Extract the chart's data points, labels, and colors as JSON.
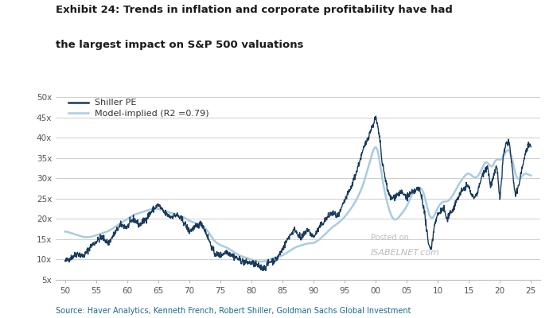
{
  "title_line1": "Exhibit 24: Trends in inflation and corporate profitability have had",
  "title_line2": "the largest impact on S&P 500 valuations",
  "source": "Source: Haver Analytics, Kenneth French, Robert Shiller, Goldman Sachs Global Investment",
  "legend_shiller": "Shiller PE",
  "legend_model": "Model-implied (R2 =0.79)",
  "color_shiller": "#1a3a5c",
  "color_model": "#a8cce0",
  "watermark_line1": "Posted on",
  "watermark_line2": "ISABELNET.com",
  "ylim": [
    5,
    52
  ],
  "yticks": [
    5,
    10,
    15,
    20,
    25,
    30,
    35,
    40,
    45,
    50
  ],
  "ytick_labels": [
    "5x",
    "10x",
    "15x",
    "20x",
    "25x",
    "30x",
    "35x",
    "40x",
    "45x",
    "50x"
  ],
  "xticks": [
    1950,
    1955,
    1960,
    1965,
    1970,
    1975,
    1980,
    1985,
    1990,
    1995,
    2000,
    2005,
    2010,
    2015,
    2020,
    2025
  ],
  "xtick_labels": [
    "50",
    "55",
    "60",
    "65",
    "70",
    "75",
    "80",
    "85",
    "90",
    "95",
    "00",
    "05",
    "10",
    "15",
    "20",
    "25"
  ],
  "background_color": "#ffffff",
  "title_color": "#1a1a1a",
  "source_color": "#1a6b8a",
  "axis_color": "#bbbbbb",
  "shiller_keypoints": [
    [
      1950,
      9.5
    ],
    [
      1951,
      10.5
    ],
    [
      1952,
      11.5
    ],
    [
      1953,
      10.8
    ],
    [
      1954,
      13.0
    ],
    [
      1955,
      14.5
    ],
    [
      1956,
      15.5
    ],
    [
      1957,
      14.0
    ],
    [
      1958,
      16.5
    ],
    [
      1959,
      18.5
    ],
    [
      1960,
      18.0
    ],
    [
      1961,
      20.0
    ],
    [
      1962,
      18.5
    ],
    [
      1963,
      20.0
    ],
    [
      1964,
      22.0
    ],
    [
      1965,
      23.5
    ],
    [
      1966,
      21.5
    ],
    [
      1967,
      20.5
    ],
    [
      1968,
      21.0
    ],
    [
      1969,
      19.5
    ],
    [
      1970,
      17.0
    ],
    [
      1971,
      18.0
    ],
    [
      1972,
      19.0
    ],
    [
      1973,
      15.5
    ],
    [
      1974,
      11.5
    ],
    [
      1975,
      11.0
    ],
    [
      1976,
      12.0
    ],
    [
      1977,
      11.0
    ],
    [
      1978,
      10.0
    ],
    [
      1979,
      9.3
    ],
    [
      1980,
      9.2
    ],
    [
      1981,
      8.5
    ],
    [
      1982,
      7.8
    ],
    [
      1983,
      9.5
    ],
    [
      1984,
      10.0
    ],
    [
      1985,
      12.5
    ],
    [
      1986,
      15.5
    ],
    [
      1987,
      17.5
    ],
    [
      1988,
      15.0
    ],
    [
      1989,
      17.5
    ],
    [
      1990,
      15.5
    ],
    [
      1991,
      18.0
    ],
    [
      1992,
      20.0
    ],
    [
      1993,
      21.5
    ],
    [
      1994,
      20.5
    ],
    [
      1995,
      24.5
    ],
    [
      1996,
      27.5
    ],
    [
      1997,
      32.0
    ],
    [
      1998,
      37.0
    ],
    [
      1999,
      41.0
    ],
    [
      2000.0,
      45.0
    ],
    [
      2000.3,
      43.0
    ],
    [
      2000.8,
      38.0
    ],
    [
      2001.0,
      34.0
    ],
    [
      2001.5,
      30.5
    ],
    [
      2002.0,
      26.5
    ],
    [
      2002.5,
      25.0
    ],
    [
      2003.0,
      25.5
    ],
    [
      2003.5,
      26.0
    ],
    [
      2004.0,
      26.5
    ],
    [
      2004.5,
      26.0
    ],
    [
      2005.0,
      25.5
    ],
    [
      2005.5,
      26.0
    ],
    [
      2006.0,
      26.5
    ],
    [
      2006.5,
      27.0
    ],
    [
      2007.0,
      27.5
    ],
    [
      2007.5,
      25.0
    ],
    [
      2008.0,
      20.0
    ],
    [
      2008.5,
      13.5
    ],
    [
      2009.0,
      13.0
    ],
    [
      2009.5,
      19.0
    ],
    [
      2010.0,
      21.0
    ],
    [
      2010.5,
      22.0
    ],
    [
      2011.0,
      22.5
    ],
    [
      2011.5,
      19.5
    ],
    [
      2012.0,
      21.5
    ],
    [
      2012.5,
      22.5
    ],
    [
      2013.0,
      24.5
    ],
    [
      2013.5,
      26.0
    ],
    [
      2014.0,
      27.0
    ],
    [
      2014.5,
      28.0
    ],
    [
      2015.0,
      28.0
    ],
    [
      2015.5,
      25.5
    ],
    [
      2016.0,
      25.5
    ],
    [
      2016.5,
      27.0
    ],
    [
      2017.0,
      30.0
    ],
    [
      2017.5,
      32.0
    ],
    [
      2018.0,
      33.0
    ],
    [
      2018.5,
      28.0
    ],
    [
      2019.0,
      30.5
    ],
    [
      2019.5,
      33.0
    ],
    [
      2020.0,
      25.0
    ],
    [
      2020.3,
      30.0
    ],
    [
      2020.5,
      35.0
    ],
    [
      2021.0,
      38.5
    ],
    [
      2021.5,
      39.0
    ],
    [
      2022.0,
      32.0
    ],
    [
      2022.5,
      25.5
    ],
    [
      2023.0,
      28.0
    ],
    [
      2023.5,
      32.0
    ],
    [
      2024.0,
      35.5
    ],
    [
      2024.5,
      38.0
    ],
    [
      2025.0,
      37.5
    ]
  ],
  "model_keypoints": [
    [
      1950,
      17.0
    ],
    [
      1951,
      16.5
    ],
    [
      1952,
      16.0
    ],
    [
      1953,
      15.5
    ],
    [
      1954,
      15.5
    ],
    [
      1955,
      16.0
    ],
    [
      1956,
      16.5
    ],
    [
      1957,
      17.0
    ],
    [
      1958,
      18.0
    ],
    [
      1959,
      19.0
    ],
    [
      1960,
      20.0
    ],
    [
      1961,
      21.0
    ],
    [
      1962,
      21.5
    ],
    [
      1963,
      22.0
    ],
    [
      1964,
      22.5
    ],
    [
      1965,
      22.5
    ],
    [
      1966,
      22.0
    ],
    [
      1967,
      21.5
    ],
    [
      1968,
      21.0
    ],
    [
      1969,
      20.5
    ],
    [
      1970,
      19.5
    ],
    [
      1971,
      19.0
    ],
    [
      1972,
      18.5
    ],
    [
      1973,
      17.0
    ],
    [
      1974,
      14.5
    ],
    [
      1975,
      13.5
    ],
    [
      1976,
      13.0
    ],
    [
      1977,
      12.0
    ],
    [
      1978,
      11.0
    ],
    [
      1979,
      10.5
    ],
    [
      1980,
      10.0
    ],
    [
      1981,
      9.5
    ],
    [
      1982,
      9.5
    ],
    [
      1983,
      10.0
    ],
    [
      1984,
      10.5
    ],
    [
      1985,
      11.0
    ],
    [
      1986,
      12.0
    ],
    [
      1987,
      13.0
    ],
    [
      1988,
      13.5
    ],
    [
      1989,
      14.0
    ],
    [
      1990,
      14.0
    ],
    [
      1991,
      15.0
    ],
    [
      1992,
      16.5
    ],
    [
      1993,
      18.0
    ],
    [
      1994,
      19.0
    ],
    [
      1995,
      20.5
    ],
    [
      1996,
      22.5
    ],
    [
      1997,
      25.0
    ],
    [
      1998,
      28.5
    ],
    [
      1999,
      34.0
    ],
    [
      2000.0,
      39.0
    ],
    [
      2000.5,
      36.0
    ],
    [
      2001.0,
      30.0
    ],
    [
      2001.5,
      26.0
    ],
    [
      2002.0,
      23.0
    ],
    [
      2002.5,
      20.5
    ],
    [
      2003.0,
      19.5
    ],
    [
      2003.5,
      20.0
    ],
    [
      2004.0,
      21.0
    ],
    [
      2004.5,
      22.0
    ],
    [
      2005.0,
      23.0
    ],
    [
      2005.5,
      25.0
    ],
    [
      2006.0,
      26.5
    ],
    [
      2006.5,
      27.5
    ],
    [
      2007.0,
      28.0
    ],
    [
      2007.5,
      27.5
    ],
    [
      2008.0,
      25.0
    ],
    [
      2008.5,
      21.0
    ],
    [
      2009.0,
      19.5
    ],
    [
      2009.5,
      21.0
    ],
    [
      2010.0,
      23.0
    ],
    [
      2010.5,
      24.0
    ],
    [
      2011.0,
      24.5
    ],
    [
      2011.5,
      24.0
    ],
    [
      2012.0,
      25.0
    ],
    [
      2012.5,
      26.0
    ],
    [
      2013.0,
      27.5
    ],
    [
      2013.5,
      29.0
    ],
    [
      2014.0,
      30.0
    ],
    [
      2014.5,
      31.0
    ],
    [
      2015.0,
      31.5
    ],
    [
      2015.5,
      30.5
    ],
    [
      2016.0,
      30.0
    ],
    [
      2016.5,
      30.5
    ],
    [
      2017.0,
      32.0
    ],
    [
      2017.5,
      34.0
    ],
    [
      2018.0,
      34.5
    ],
    [
      2018.5,
      32.0
    ],
    [
      2019.0,
      33.5
    ],
    [
      2019.5,
      35.5
    ],
    [
      2020.0,
      34.0
    ],
    [
      2020.5,
      35.0
    ],
    [
      2021.0,
      37.0
    ],
    [
      2021.5,
      37.5
    ],
    [
      2022.0,
      35.0
    ],
    [
      2022.5,
      30.0
    ],
    [
      2023.0,
      29.5
    ],
    [
      2023.5,
      30.5
    ],
    [
      2024.0,
      31.5
    ],
    [
      2024.5,
      31.0
    ],
    [
      2025.0,
      30.5
    ]
  ]
}
